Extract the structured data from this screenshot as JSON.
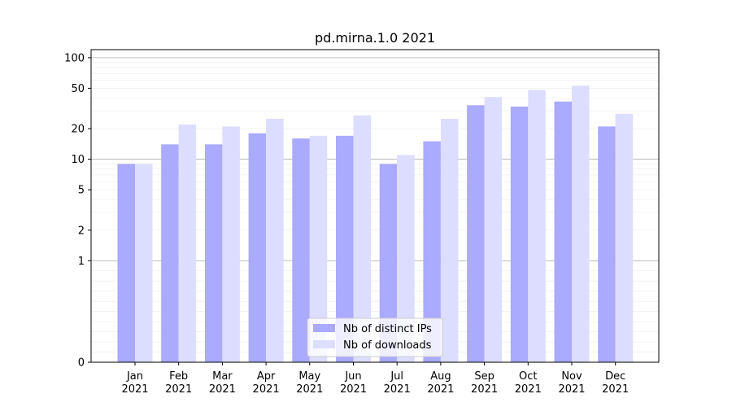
{
  "chart_data": {
    "type": "bar",
    "title": "pd.mirna.1.0 2021",
    "xlabel": "",
    "ylabel": "",
    "y_scale": "symlog",
    "ylim": [
      0,
      120
    ],
    "yticks": [
      0,
      1,
      2,
      5,
      10,
      20,
      50,
      100
    ],
    "categories": [
      "Jan\n2021",
      "Feb\n2021",
      "Mar\n2021",
      "Apr\n2021",
      "May\n2021",
      "Jun\n2021",
      "Jul\n2021",
      "Aug\n2021",
      "Sep\n2021",
      "Oct\n2021",
      "Nov\n2021",
      "Dec\n2021"
    ],
    "series": [
      {
        "name": "Nb of distinct IPs",
        "color": "#aaaaff",
        "values": [
          9,
          14,
          14,
          18,
          16,
          17,
          9,
          15,
          34,
          33,
          37,
          21
        ]
      },
      {
        "name": "Nb of downloads",
        "color": "#ddddff",
        "values": [
          9,
          22,
          21,
          25,
          17,
          27,
          11,
          25,
          41,
          48,
          53,
          28
        ]
      }
    ],
    "legend_position": "bottom-center",
    "grid": true
  }
}
